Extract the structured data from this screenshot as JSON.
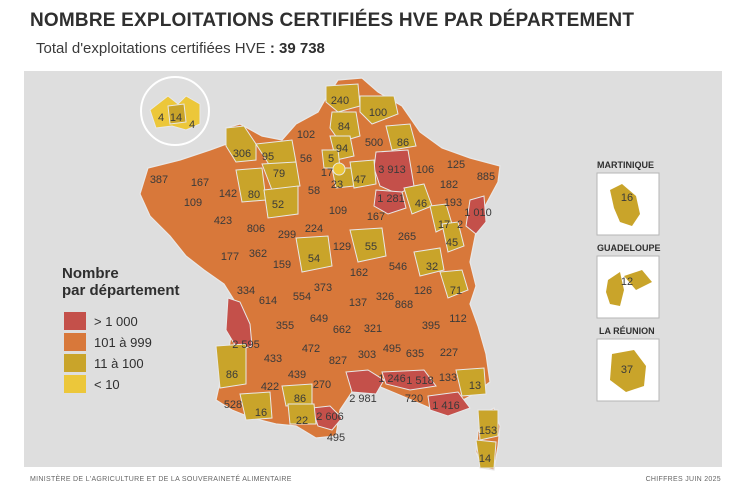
{
  "header": {
    "title": "NOMBRE EXPLOITATIONS CERTIFIÉES HVE PAR DÉPARTEMENT",
    "subtitle_text": "Total d'exploitations certifiées HVE",
    "subtitle_sep": " : ",
    "subtitle_total": "39 738"
  },
  "legend": {
    "title_line1": "Nombre",
    "title_line2": "par département",
    "items": [
      {
        "label": "> 1 000",
        "color": "#c4504a"
      },
      {
        "label": "101 à 999",
        "color": "#d8783a"
      },
      {
        "label": "11 à 100",
        "color": "#c9a42a"
      },
      {
        "label": "< 10",
        "color": "#ecc73a"
      }
    ]
  },
  "colors": {
    "panel": "#dedede",
    "dark_red": "#c4504a",
    "orange": "#d8783a",
    "ochre": "#c9a42a",
    "yellow": "#ecc73a",
    "border": "#e8e8e8"
  },
  "values": [
    "240",
    "100",
    "84",
    "102",
    "500",
    "86",
    "306",
    "95",
    "56",
    "94",
    "5",
    "17",
    "23",
    "47",
    "3 913",
    "106",
    "125",
    "182",
    "885",
    "387",
    "167",
    "79",
    "58",
    "193",
    "109",
    "142",
    "80",
    "52",
    "109",
    "1 281",
    "46",
    "1 010",
    "17",
    "2",
    "423",
    "806",
    "299",
    "224",
    "167",
    "265",
    "45",
    "129",
    "55",
    "177",
    "362",
    "159",
    "54",
    "546",
    "32",
    "162",
    "71",
    "334",
    "614",
    "554",
    "373",
    "137",
    "326",
    "868",
    "126",
    "112",
    "649",
    "395",
    "2 595",
    "355",
    "662",
    "321",
    "472",
    "303",
    "495",
    "635",
    "227",
    "86",
    "433",
    "439",
    "827",
    "422",
    "270",
    "1 246",
    "1 518",
    "133",
    "13",
    "528",
    "86",
    "2 981",
    "720",
    "1 416",
    "16",
    "22",
    "2 606",
    "495",
    "153",
    "14"
  ],
  "inset_paris": [
    "4",
    "14",
    "4"
  ],
  "overseas": [
    {
      "name": "MARTINIQUE",
      "value": "16"
    },
    {
      "name": "GUADELOUPE",
      "value": "12"
    },
    {
      "name": "LA RÉUNION",
      "value": "37"
    }
  ],
  "footer": {
    "left": "MINISTÈRE DE L'AGRICULTURE ET DE LA SOUVERAINETÉ ALIMENTAIRE",
    "right": "CHIFFRES JUIN 2025"
  }
}
